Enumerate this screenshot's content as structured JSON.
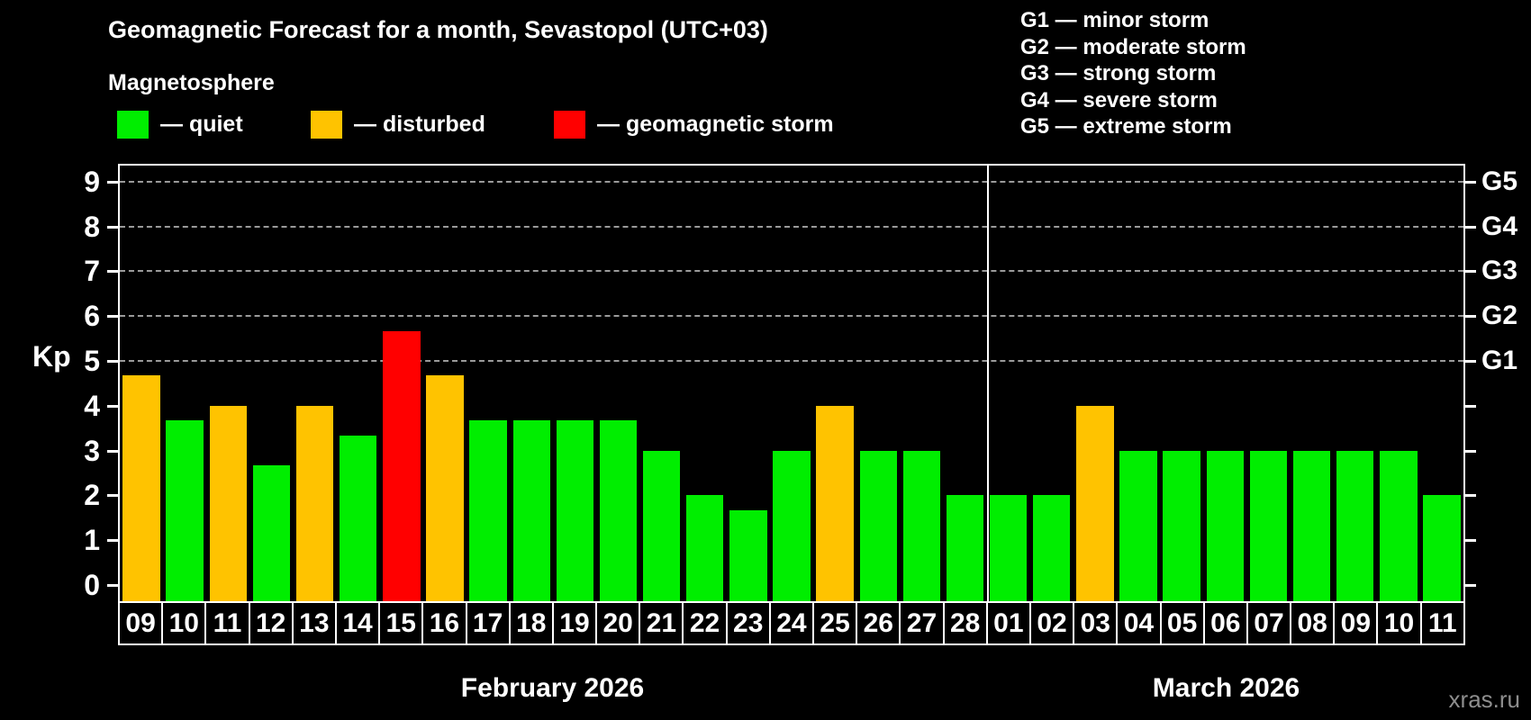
{
  "header": {
    "title": "Geomagnetic Forecast for a month, Sevastopol (UTC+03)",
    "subtitle": "Magnetosphere",
    "legend": [
      {
        "key": "quiet",
        "label": "— quiet",
        "color": "#00ee00"
      },
      {
        "key": "disturbed",
        "label": "— disturbed",
        "color": "#ffc300"
      },
      {
        "key": "storm",
        "label": "— geomagnetic storm",
        "color": "#ff0000"
      }
    ],
    "g_legend": [
      "G1 — minor storm",
      "G2 — moderate storm",
      "G3 — strong storm",
      "G4 — severe storm",
      "G5 — extreme storm"
    ]
  },
  "chart_data": {
    "type": "bar",
    "title": "Geomagnetic Forecast for a month, Sevastopol (UTC+03)",
    "ylabel": "Kp",
    "ylim": [
      -0.36,
      9.38
    ],
    "y_ticks": [
      0,
      1,
      2,
      3,
      4,
      5,
      6,
      7,
      8,
      9
    ],
    "gridlines": [
      5,
      6,
      7,
      8,
      9
    ],
    "right_labels": {
      "5": "G1",
      "6": "G2",
      "7": "G3",
      "8": "G4",
      "9": "G5"
    },
    "legend_position": "top",
    "grid": "dashed horizontal at Kp 5-9",
    "colors": {
      "quiet": "#00ee00",
      "disturbed": "#ffc300",
      "storm": "#ff0000"
    },
    "months": [
      {
        "label": "February 2026",
        "days": [
          {
            "day": "09",
            "kp": 4.67,
            "status": "disturbed"
          },
          {
            "day": "10",
            "kp": 3.67,
            "status": "quiet"
          },
          {
            "day": "11",
            "kp": 4.0,
            "status": "disturbed"
          },
          {
            "day": "12",
            "kp": 2.67,
            "status": "quiet"
          },
          {
            "day": "13",
            "kp": 4.0,
            "status": "disturbed"
          },
          {
            "day": "14",
            "kp": 3.33,
            "status": "quiet"
          },
          {
            "day": "15",
            "kp": 5.67,
            "status": "storm"
          },
          {
            "day": "16",
            "kp": 4.67,
            "status": "disturbed"
          },
          {
            "day": "17",
            "kp": 3.67,
            "status": "quiet"
          },
          {
            "day": "18",
            "kp": 3.67,
            "status": "quiet"
          },
          {
            "day": "19",
            "kp": 3.67,
            "status": "quiet"
          },
          {
            "day": "20",
            "kp": 3.67,
            "status": "quiet"
          },
          {
            "day": "21",
            "kp": 3.0,
            "status": "quiet"
          },
          {
            "day": "22",
            "kp": 2.0,
            "status": "quiet"
          },
          {
            "day": "23",
            "kp": 1.67,
            "status": "quiet"
          },
          {
            "day": "24",
            "kp": 3.0,
            "status": "quiet"
          },
          {
            "day": "25",
            "kp": 4.0,
            "status": "disturbed"
          },
          {
            "day": "26",
            "kp": 3.0,
            "status": "quiet"
          },
          {
            "day": "27",
            "kp": 3.0,
            "status": "quiet"
          },
          {
            "day": "28",
            "kp": 2.0,
            "status": "quiet"
          }
        ]
      },
      {
        "label": "March 2026",
        "days": [
          {
            "day": "01",
            "kp": 2.0,
            "status": "quiet"
          },
          {
            "day": "02",
            "kp": 2.0,
            "status": "quiet"
          },
          {
            "day": "03",
            "kp": 4.0,
            "status": "disturbed"
          },
          {
            "day": "04",
            "kp": 3.0,
            "status": "quiet"
          },
          {
            "day": "05",
            "kp": 3.0,
            "status": "quiet"
          },
          {
            "day": "06",
            "kp": 3.0,
            "status": "quiet"
          },
          {
            "day": "07",
            "kp": 3.0,
            "status": "quiet"
          },
          {
            "day": "08",
            "kp": 3.0,
            "status": "quiet"
          },
          {
            "day": "09",
            "kp": 3.0,
            "status": "quiet"
          },
          {
            "day": "10",
            "kp": 3.0,
            "status": "quiet"
          },
          {
            "day": "11",
            "kp": 2.0,
            "status": "quiet"
          }
        ]
      }
    ]
  },
  "watermark": "xras.ru"
}
